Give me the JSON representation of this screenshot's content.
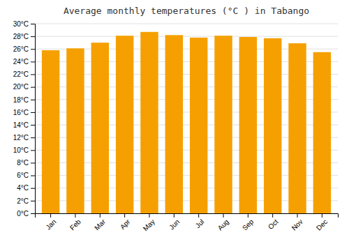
{
  "chart_data": {
    "type": "bar",
    "title": "Average monthly temperatures (°C ) in Tabango",
    "categories": [
      "Jan",
      "Feb",
      "Mar",
      "Apr",
      "May",
      "Jun",
      "Jul",
      "Aug",
      "Sep",
      "Oct",
      "Nov",
      "Dec"
    ],
    "values": [
      25.8,
      26.1,
      27.0,
      28.1,
      28.7,
      28.2,
      27.8,
      28.1,
      27.9,
      27.7,
      26.9,
      25.5
    ],
    "color": "#F5A000",
    "ylim": [
      0,
      30
    ],
    "yticks": [
      {
        "value": 0,
        "label": "0°C"
      },
      {
        "value": 2,
        "label": "2°C"
      },
      {
        "value": 4,
        "label": "4°C"
      },
      {
        "value": 6,
        "label": "6°C"
      },
      {
        "value": 8,
        "label": "8°C"
      },
      {
        "value": 10,
        "label": "10°C"
      },
      {
        "value": 12,
        "label": "12°C"
      },
      {
        "value": 14,
        "label": "14°C"
      },
      {
        "value": 16,
        "label": "16°C"
      },
      {
        "value": 18,
        "label": "18°C"
      },
      {
        "value": 20,
        "label": "20°C"
      },
      {
        "value": 22,
        "label": "22°C"
      },
      {
        "value": 24,
        "label": "24°C"
      },
      {
        "value": 26,
        "label": "26°C"
      },
      {
        "value": 28,
        "label": "28°C"
      },
      {
        "value": 30,
        "label": "30°C"
      }
    ],
    "grid": true
  }
}
